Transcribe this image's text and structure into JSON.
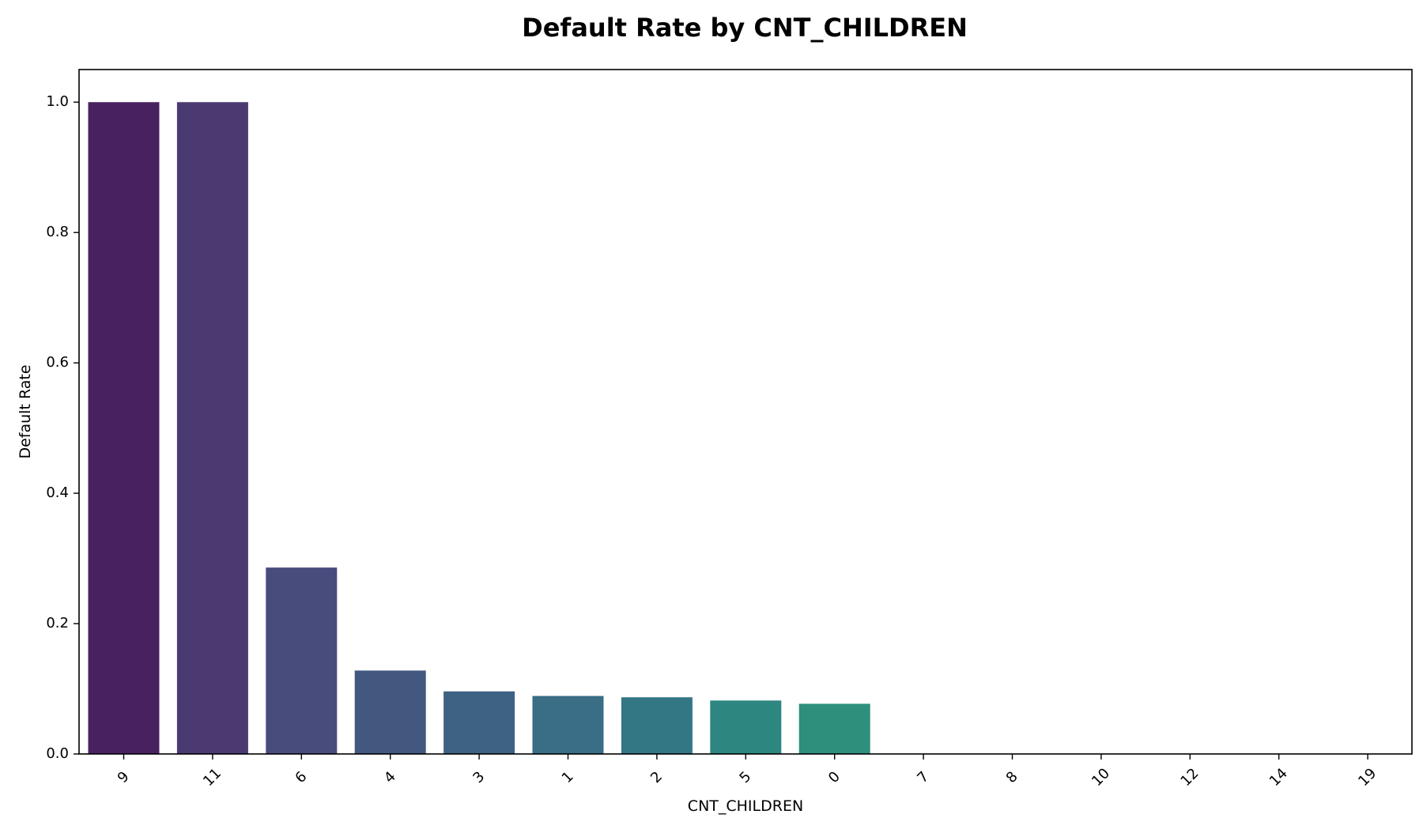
{
  "chart_data": {
    "type": "bar",
    "title": "Default Rate by CNT_CHILDREN",
    "xlabel": "CNT_CHILDREN",
    "ylabel": "Default Rate",
    "categories": [
      "9",
      "11",
      "6",
      "4",
      "3",
      "1",
      "2",
      "5",
      "0",
      "7",
      "8",
      "10",
      "12",
      "14",
      "19"
    ],
    "values": [
      1.0,
      1.0,
      0.286,
      0.128,
      0.096,
      0.089,
      0.087,
      0.082,
      0.077,
      0.0,
      0.0,
      0.0,
      0.0,
      0.0,
      0.0
    ],
    "colors": [
      "#482260",
      "#4b3a72",
      "#484c7d",
      "#43587f",
      "#3d6283",
      "#3a6d86",
      "#337785",
      "#2d8680",
      "#2e8f7d",
      "#2b9a7a",
      "#27a575",
      "#2aad6e",
      "#3ab766",
      "#52c05a",
      "#6ec94d"
    ],
    "ylim": [
      0,
      1.05
    ],
    "yticks": [
      "0.0",
      "0.2",
      "0.4",
      "0.6",
      "0.8",
      "1.0"
    ],
    "grid": false,
    "legend": "none"
  }
}
